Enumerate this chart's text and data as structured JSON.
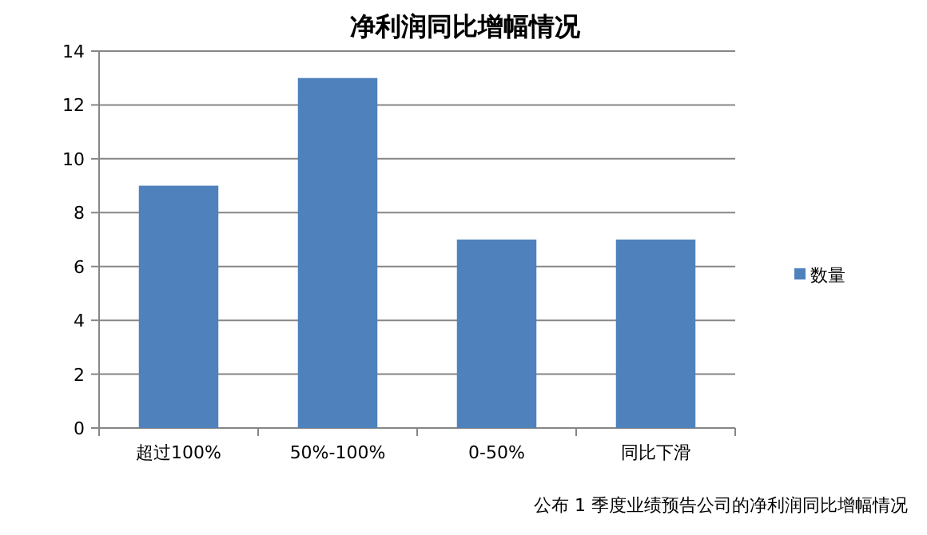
{
  "chart_data": {
    "type": "bar",
    "title": "净利润同比增幅情况",
    "categories": [
      "超过100%",
      "50%-100%",
      "0-50%",
      "同比下滑"
    ],
    "series": [
      {
        "name": "数量",
        "color": "#4f81bd",
        "values": [
          9,
          13,
          7,
          7
        ]
      }
    ],
    "ylim": [
      0,
      14
    ],
    "yticks": [
      0,
      2,
      4,
      6,
      8,
      10,
      12,
      14
    ],
    "grid": "y",
    "legend": "right",
    "annotations": [
      "公布 1 季度业绩预告公司的净利润同比增幅情况"
    ]
  }
}
